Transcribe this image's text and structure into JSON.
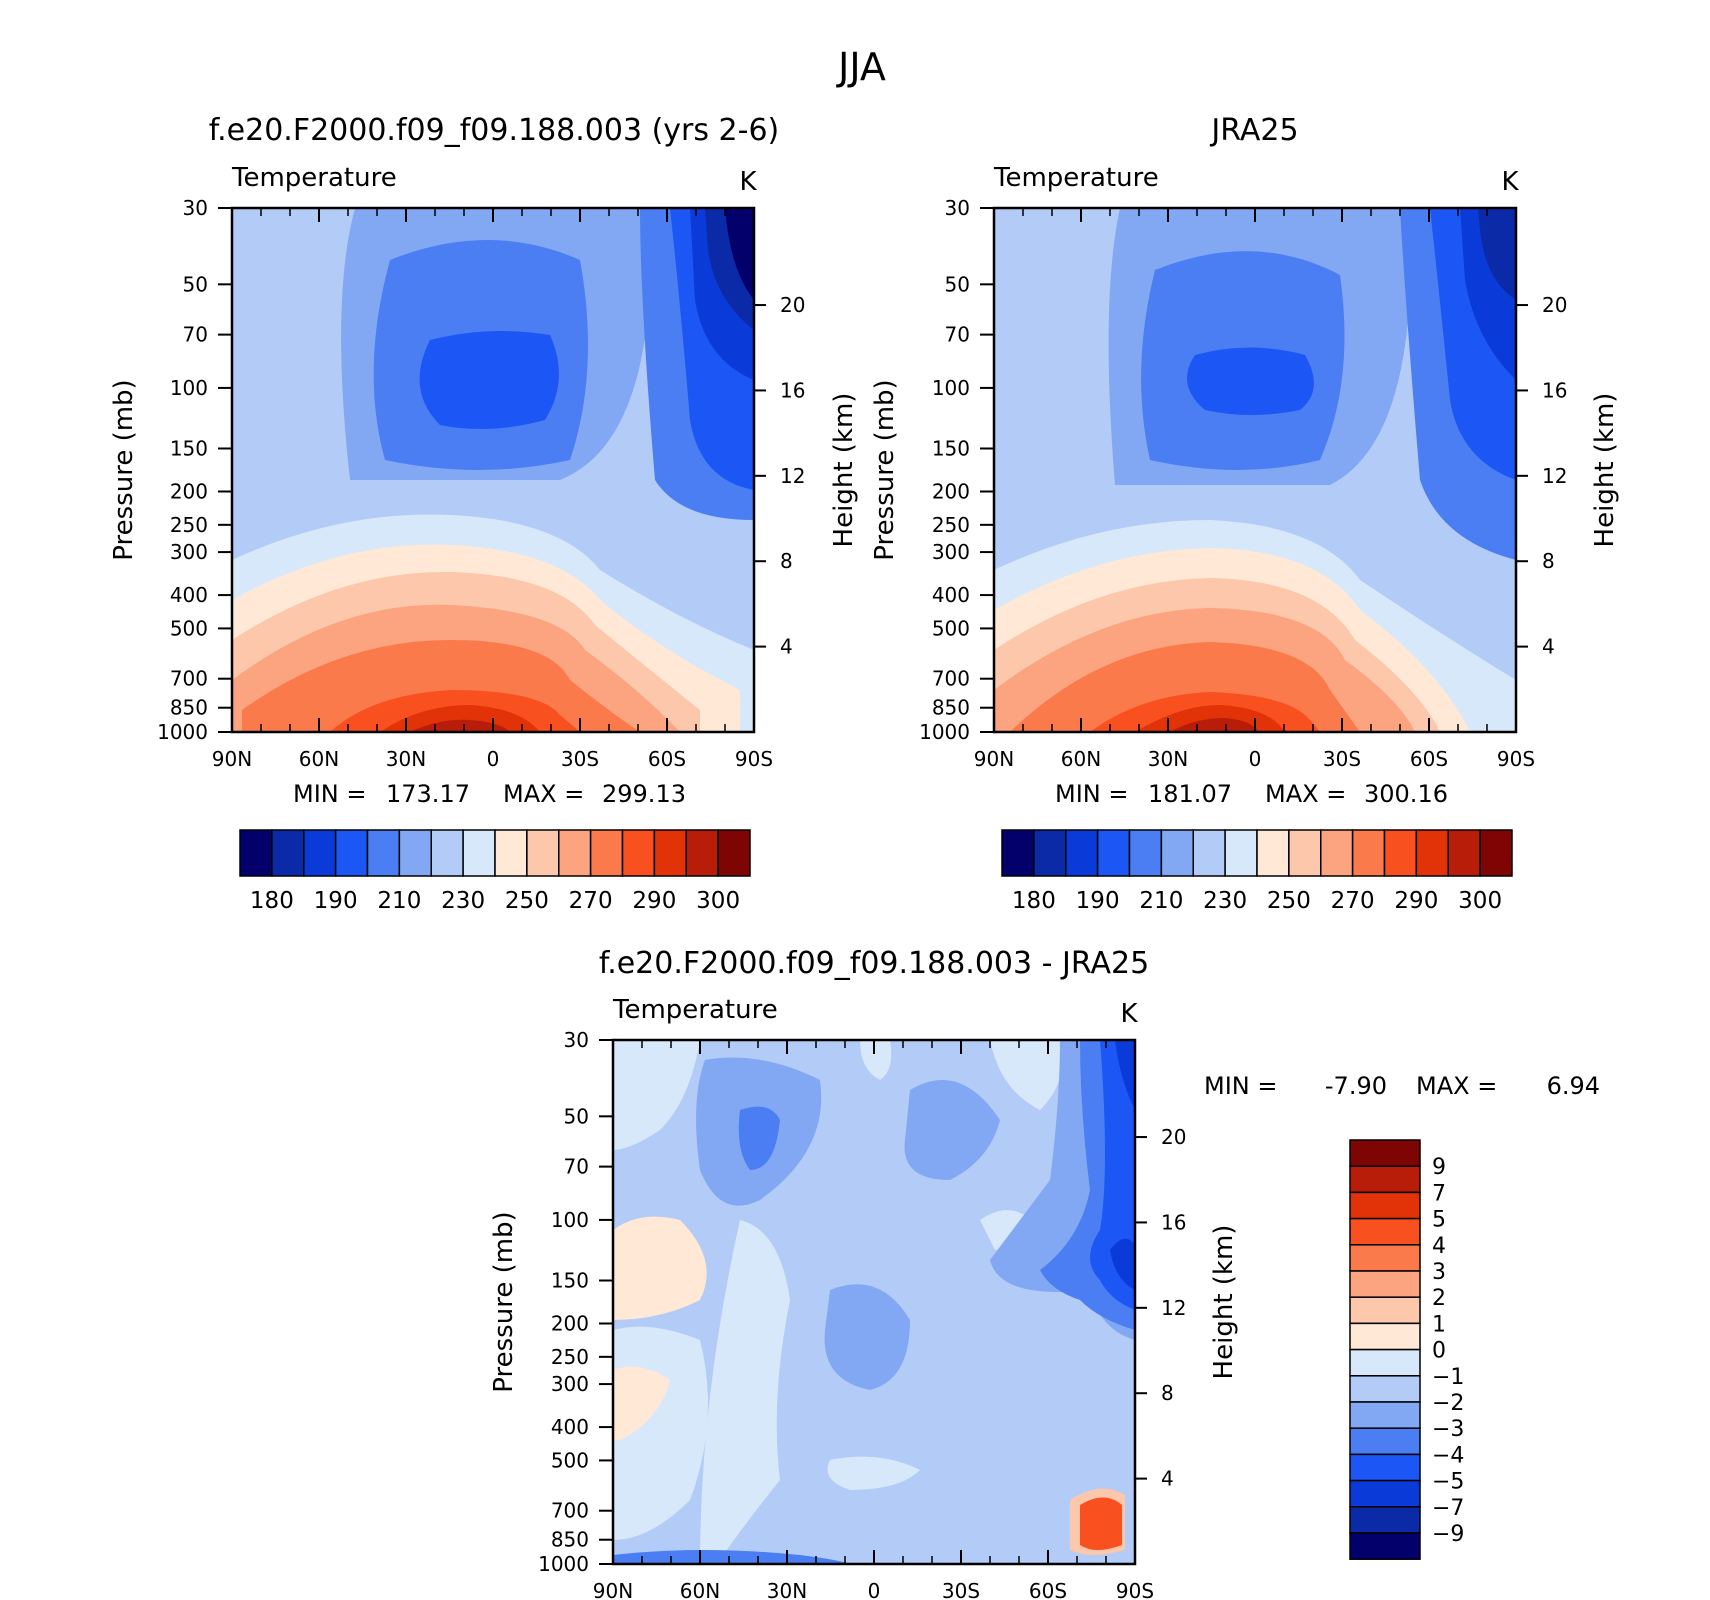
{
  "figure": {
    "title": "JJA"
  },
  "panels": [
    {
      "title": "f.e20.F2000.f09_f09.188.003 (yrs 2-6)",
      "variable": "Temperature",
      "units": "K",
      "ylabel": "Pressure (mb)",
      "ylabel_right": "Height (km)",
      "stats": {
        "min": "173.17",
        "max": "299.13"
      }
    },
    {
      "title": "JRA25",
      "variable": "Temperature",
      "units": "K",
      "ylabel": "Pressure (mb)",
      "ylabel_right": "Height (km)",
      "stats": {
        "min": "181.07",
        "max": "300.16"
      }
    },
    {
      "title": "f.e20.F2000.f09_f09.188.003 - JRA25",
      "variable": "Temperature",
      "units": "K",
      "ylabel": "Pressure (mb)",
      "ylabel_right": "Height (km)",
      "stats": {
        "min": "-7.90",
        "max": "6.94"
      }
    }
  ],
  "colorbars": {
    "absolute": {
      "colors": [
        "#03006b",
        "#0a2aa8",
        "#0a3bd9",
        "#1c56f5",
        "#4a7ef2",
        "#83a8f3",
        "#b3cbf7",
        "#d8e8fb",
        "#ffe9d6",
        "#fcc7aa",
        "#fca37f",
        "#fb7a4b",
        "#f8501f",
        "#e23207",
        "#b71d08",
        "#7f0404"
      ],
      "labels": [
        "180",
        "190",
        "210",
        "230",
        "250",
        "270",
        "290",
        "300"
      ]
    },
    "difference": {
      "colors_top_to_bottom": [
        "#7f0404",
        "#b71d08",
        "#e23207",
        "#f8501f",
        "#fb7a4b",
        "#fca37f",
        "#fcc7aa",
        "#ffe9d6",
        "#d8e8fb",
        "#b3cbf7",
        "#83a8f3",
        "#4a7ef2",
        "#1c56f5",
        "#0a3bd9",
        "#0a2aa8",
        "#03006b"
      ],
      "labels": [
        "9",
        "7",
        "5",
        "4",
        "3",
        "2",
        "1",
        "0",
        "−1",
        "−2",
        "−3",
        "−4",
        "−5",
        "−7",
        "−9"
      ]
    }
  },
  "axes": {
    "x_ticks": [
      "90N",
      "60N",
      "30N",
      "0",
      "30S",
      "60S",
      "90S"
    ],
    "p_ticks": [
      "30",
      "50",
      "70",
      "100",
      "150",
      "200",
      "250",
      "300",
      "400",
      "500",
      "700",
      "850",
      "1000"
    ],
    "z_ticks": [
      "4",
      "8",
      "12",
      "16",
      "20"
    ]
  },
  "chart_data": [
    {
      "type": "heatmap",
      "title": "f.e20.F2000.f09_f09.188.003 (yrs 2-6)",
      "subtitle": "Temperature",
      "units": "K",
      "xlabel": "",
      "ylabel": "Pressure (mb)",
      "ylabel_right": "Height (km)",
      "x": [
        "90N",
        "60N",
        "30N",
        "0",
        "30S",
        "60S",
        "90S"
      ],
      "y": [
        30,
        50,
        70,
        100,
        150,
        200,
        250,
        300,
        400,
        500,
        700,
        850,
        1000
      ],
      "y_scale": "log",
      "ylim": [
        1000,
        30
      ],
      "levels": [
        180,
        185,
        190,
        200,
        210,
        220,
        230,
        240,
        250,
        260,
        270,
        280,
        290,
        295,
        300
      ],
      "min": 173.17,
      "max": 299.13
    },
    {
      "type": "heatmap",
      "title": "JRA25",
      "subtitle": "Temperature",
      "units": "K",
      "xlabel": "",
      "ylabel": "Pressure (mb)",
      "ylabel_right": "Height (km)",
      "x": [
        "90N",
        "60N",
        "30N",
        "0",
        "30S",
        "60S",
        "90S"
      ],
      "y": [
        30,
        50,
        70,
        100,
        150,
        200,
        250,
        300,
        400,
        500,
        700,
        850,
        1000
      ],
      "y_scale": "log",
      "ylim": [
        1000,
        30
      ],
      "levels": [
        180,
        185,
        190,
        200,
        210,
        220,
        230,
        240,
        250,
        260,
        270,
        280,
        290,
        295,
        300
      ],
      "min": 181.07,
      "max": 300.16
    },
    {
      "type": "heatmap",
      "title": "f.e20.F2000.f09_f09.188.003 - JRA25",
      "subtitle": "Temperature",
      "units": "K",
      "xlabel": "",
      "ylabel": "Pressure (mb)",
      "ylabel_right": "Height (km)",
      "x": [
        "90N",
        "60N",
        "30N",
        "0",
        "30S",
        "60S",
        "90S"
      ],
      "y": [
        30,
        50,
        70,
        100,
        150,
        200,
        250,
        300,
        400,
        500,
        700,
        850,
        1000
      ],
      "y_scale": "log",
      "ylim": [
        1000,
        30
      ],
      "levels": [
        -9,
        -7,
        -5,
        -4,
        -3,
        -2,
        -1,
        0,
        1,
        2,
        3,
        4,
        5,
        7,
        9
      ],
      "min": -7.9,
      "max": 6.94
    }
  ]
}
